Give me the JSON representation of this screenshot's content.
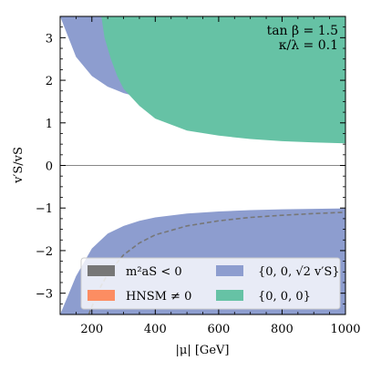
{
  "chart_data": {
    "type": "area",
    "xlabel": "|μ| [GeV]",
    "ylabel": "v′S/vS",
    "xlim": [
      100,
      1000
    ],
    "ylim": [
      -3.5,
      3.5
    ],
    "x_ticks": [
      200,
      400,
      600,
      800,
      1000
    ],
    "y_ticks": [
      -3,
      -2,
      -1,
      0,
      1,
      2,
      3
    ],
    "tick_labels_x": [
      "200",
      "400",
      "600",
      "800",
      "1000"
    ],
    "tick_labels_y": [
      "−3",
      "−2",
      "−1",
      "0",
      "1",
      "2",
      "3"
    ],
    "annotations": [
      "tan β = 1.5",
      "κ/λ = 0.1"
    ],
    "legend": {
      "placement": "lower-center",
      "entries": [
        {
          "label": "m²aS < 0",
          "color": "#777777"
        },
        {
          "label": "{0, 0, √2 v′S}",
          "color": "#8d9dcf"
        },
        {
          "label": "HNSM ≠ 0",
          "color": "#fc8d62"
        },
        {
          "label": "{0, 0, 0}",
          "color": "#66c2a5"
        }
      ]
    },
    "zero_line": true,
    "series": [
      {
        "name": "{0, 0, √2 v′S}",
        "color": "#8d9dcf",
        "kind": "band-upper",
        "x": [
          100,
          150,
          200,
          250,
          300,
          350,
          400,
          500,
          600,
          700,
          800,
          900,
          1000
        ],
        "lower": [
          3.5,
          2.55,
          2.1,
          1.85,
          1.7,
          1.6,
          1.52,
          1.42,
          1.35,
          1.3,
          1.26,
          1.23,
          1.2
        ],
        "upper": [
          3.5,
          3.5,
          3.5,
          3.5,
          3.5,
          3.5,
          3.5,
          3.5,
          3.5,
          3.5,
          3.5,
          3.5,
          3.5
        ]
      },
      {
        "name": "{0, 0, 0}",
        "color": "#66c2a5",
        "kind": "band-upper",
        "x": [
          230,
          240,
          260,
          280,
          300,
          350,
          400,
          500,
          600,
          700,
          800,
          900,
          1000
        ],
        "lower": [
          3.5,
          3.0,
          2.5,
          2.1,
          1.8,
          1.4,
          1.1,
          0.82,
          0.7,
          0.62,
          0.57,
          0.54,
          0.52
        ],
        "upper": [
          3.5,
          3.5,
          3.5,
          3.5,
          3.5,
          3.5,
          3.5,
          3.5,
          3.5,
          3.5,
          3.5,
          3.5,
          3.5
        ]
      },
      {
        "name": "{0, 0, √2 v′S}",
        "color": "#8d9dcf",
        "kind": "band-lower",
        "x": [
          100,
          150,
          200,
          250,
          300,
          350,
          400,
          500,
          600,
          700,
          800,
          900,
          1000
        ],
        "lower": [
          -3.5,
          -3.5,
          -3.5,
          -3.5,
          -3.5,
          -3.5,
          -3.5,
          -3.5,
          -3.5,
          -3.5,
          -3.5,
          -3.5,
          -3.5
        ],
        "upper": [
          -3.5,
          -2.6,
          -1.95,
          -1.6,
          -1.42,
          -1.3,
          -1.22,
          -1.13,
          -1.08,
          -1.05,
          -1.03,
          -1.02,
          -1.01
        ]
      },
      {
        "name": "",
        "color": "#777777",
        "kind": "dashed-line",
        "x": [
          190,
          220,
          250,
          300,
          350,
          400,
          500,
          600,
          700,
          800,
          900,
          1000
        ],
        "y": [
          -3.5,
          -2.95,
          -2.55,
          -2.1,
          -1.82,
          -1.63,
          -1.42,
          -1.3,
          -1.22,
          -1.17,
          -1.13,
          -1.1
        ]
      }
    ]
  }
}
